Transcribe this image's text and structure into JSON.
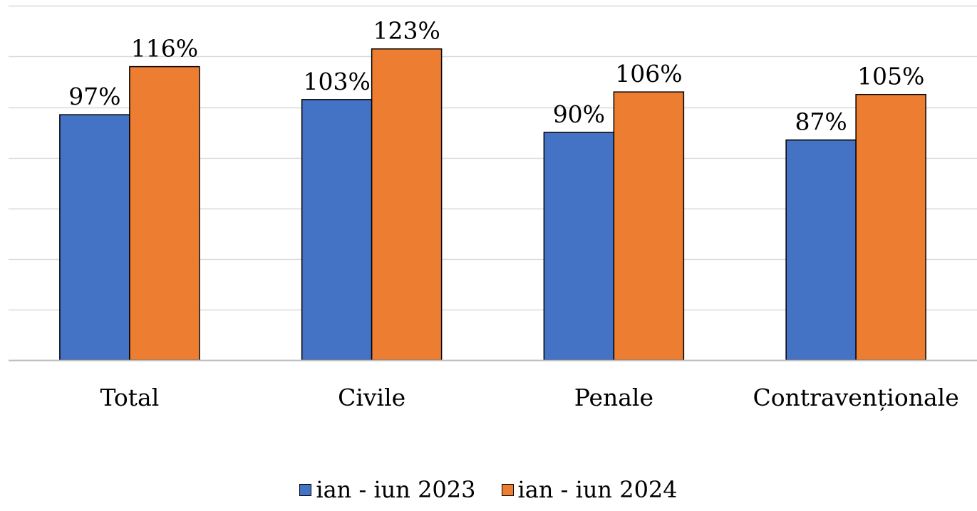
{
  "chart_data": {
    "type": "bar",
    "title": "",
    "xlabel": "",
    "ylabel": "",
    "categories": [
      "Total",
      "Civile",
      "Penale",
      "Contravenționale"
    ],
    "series": [
      {
        "name": "ian - iun 2023",
        "color": "#4472C4",
        "values": [
          97,
          103,
          90,
          87
        ],
        "labels": [
          "97%",
          "103%",
          "90%",
          "87%"
        ]
      },
      {
        "name": "ian - iun 2024",
        "color": "#ED7D31",
        "values": [
          116,
          123,
          106,
          105
        ],
        "labels": [
          "116%",
          "123%",
          "106%",
          "105%"
        ]
      }
    ],
    "unit": "%",
    "ylim": [
      0,
      140
    ],
    "y_tick_step": 20,
    "y_tick_labels_shown": false,
    "grid": true,
    "legend_position": "bottom"
  }
}
